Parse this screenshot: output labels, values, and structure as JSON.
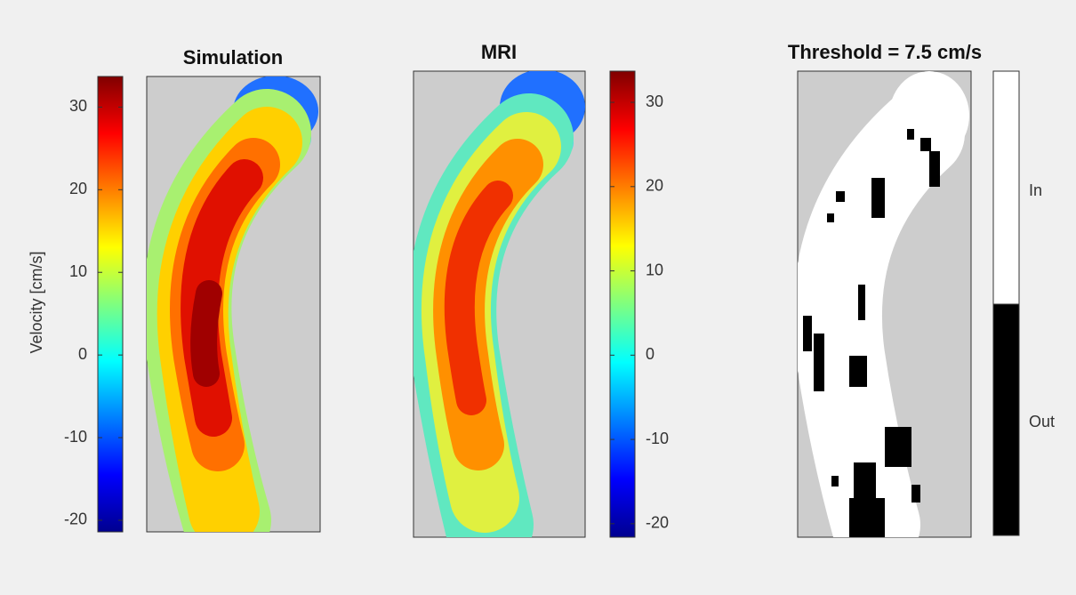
{
  "panels": [
    {
      "title": "Simulation"
    },
    {
      "title": "MRI"
    },
    {
      "title": "Threshold = 7.5 cm/s"
    }
  ],
  "colorbars": [
    {
      "label": "Velocity [cm/s]",
      "lim": [
        -21.4,
        33.7
      ],
      "ticks": [
        -20,
        -10,
        0,
        10,
        20,
        30
      ]
    },
    {
      "lim": [
        -21.6,
        33.7
      ],
      "ticks": [
        -20,
        -10,
        0,
        10,
        20,
        30
      ]
    },
    {
      "categories": [
        "Out",
        "In"
      ]
    }
  ]
}
